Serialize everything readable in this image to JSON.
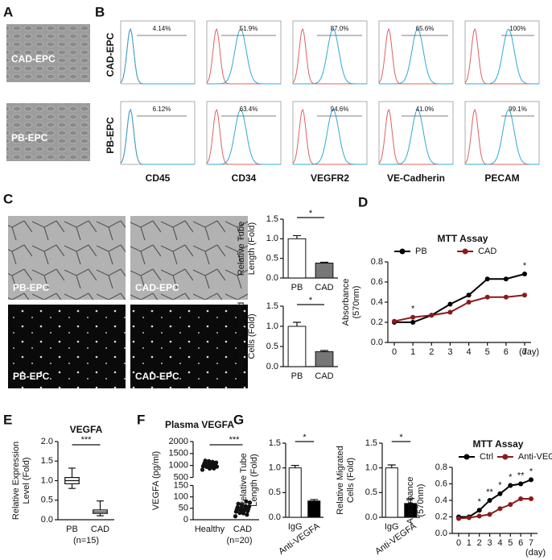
{
  "panel_labels": [
    "A",
    "B",
    "C",
    "D",
    "E",
    "F",
    "G"
  ],
  "panel_A": {
    "images": [
      "CAD-EPC",
      "PB-EPC"
    ]
  },
  "panel_B": {
    "rows": [
      "CAD-EPC",
      "PB-EPC"
    ],
    "markers": [
      "CD45",
      "CD34",
      "VEGFR2",
      "VE-Cadherin",
      "PECAM"
    ],
    "percentages": [
      [
        "4.14%",
        "51.9%",
        "87.0%",
        "65.6%",
        "100%"
      ],
      [
        "6.12%",
        "63.4%",
        "94.6%",
        "41.0%",
        "99.1%"
      ]
    ]
  },
  "panel_C": {
    "images": [
      "PB-EPC",
      "CAD-EPC",
      "PB-EPC",
      "CAD-EPC"
    ]
  },
  "chart_data": [
    {
      "type": "bar",
      "ylabel": [
        "Relative Tube",
        "Length (Fold)"
      ],
      "categories": [
        "PB",
        "CAD"
      ],
      "values": [
        1.0,
        0.38
      ],
      "errors": [
        0.08,
        0.02
      ],
      "colors": [
        "#ffffff",
        "#777777"
      ],
      "ylim": [
        0,
        1.5
      ],
      "yticks": [
        {
          "value": 0,
          "label": "0.0"
        },
        0.5,
        {
          "value": 1,
          "label": "1.0"
        },
        1.5
      ],
      "annotation": "*"
    },
    {
      "type": "bar",
      "ylabel": [
        "Relative Migrated",
        "Cells (Fold)"
      ],
      "categories": [
        "PB",
        "CAD"
      ],
      "values": [
        1.0,
        0.37
      ],
      "errors": [
        0.1,
        0.03
      ],
      "colors": [
        "#ffffff",
        "#777777"
      ],
      "ylim": [
        0,
        1.5
      ],
      "yticks": [
        {
          "value": 0,
          "label": "0.0"
        },
        0.5,
        {
          "value": 1,
          "label": "1.0"
        },
        1.5
      ],
      "annotation": "*"
    },
    {
      "type": "line",
      "title": "MTT Assay",
      "ylabel": [
        "Absorbance",
        "(570nm)"
      ],
      "xlabel": "(day)",
      "x": [
        0,
        1,
        2,
        3,
        4,
        5,
        6,
        7
      ],
      "xlim": [
        0,
        7
      ],
      "xticks": [
        0,
        1,
        2,
        3,
        4,
        5,
        6,
        7
      ],
      "series": [
        {
          "name": "PB",
          "color": "#000000",
          "values": [
            0.2,
            0.2,
            0.27,
            0.38,
            0.47,
            0.63,
            0.63,
            0.68
          ]
        },
        {
          "name": "CAD",
          "color": "#8b1a1a",
          "values": [
            0.21,
            0.25,
            0.27,
            0.3,
            0.4,
            0.45,
            0.45,
            0.47
          ]
        }
      ],
      "ylim": [
        0,
        0.8
      ],
      "yticks": [
        {
          "value": 0,
          "label": "0.0"
        },
        0.2,
        0.4,
        0.6,
        0.8
      ],
      "annotations": [
        {
          "x": 1,
          "text": "*"
        },
        {
          "x": 7,
          "text": "*"
        }
      ]
    },
    {
      "type": "box",
      "title": "VEGFA",
      "ylabel": [
        "Relative Expression",
        "Level (Fold)"
      ],
      "xlabel": "(n=15)",
      "categories": [
        "PB",
        "CAD"
      ],
      "boxes": [
        {
          "min": 0.8,
          "q1": 0.92,
          "median": 1.0,
          "q3": 1.08,
          "max": 1.32
        },
        {
          "min": 0.1,
          "q1": 0.16,
          "median": 0.2,
          "q3": 0.25,
          "max": 0.48
        }
      ],
      "ylim": [
        0,
        2
      ],
      "yticks": [
        {
          "value": 0,
          "label": "0.0"
        },
        0.5,
        {
          "value": 1,
          "label": "1.0"
        },
        1.5,
        {
          "value": 2,
          "label": "2.0"
        }
      ],
      "annotation": "***"
    },
    {
      "type": "scatter",
      "title": "Plasma VEGFA",
      "ylabel": "VEGFA (pg/ml)",
      "xlabel": "(n=20)",
      "categories": [
        "Healthy",
        "CAD"
      ],
      "values": [
        [
          820,
          880,
          900,
          940,
          960,
          980,
          1000,
          1010,
          1030,
          1050,
          1060,
          1080,
          1100,
          1120,
          1150,
          1180,
          1200,
          950,
          1020,
          870
        ],
        [
          15,
          22,
          28,
          30,
          35,
          38,
          40,
          42,
          45,
          48,
          50,
          52,
          55,
          58,
          60,
          65,
          70,
          75,
          80,
          33
        ]
      ],
      "ylim": [
        0,
        150
      ],
      "yticks": [
        0,
        50,
        100,
        150
      ],
      "ylim_upper": [
        500,
        2000
      ],
      "yticks_upper": [
        500,
        1000,
        1500,
        2000
      ],
      "annotation": "***"
    },
    {
      "type": "bar",
      "ylabel": [
        "Relative Tube",
        "Length (Fold)"
      ],
      "categories": [
        "IgG",
        "Anti-VEGFA"
      ],
      "values": [
        1.0,
        0.33
      ],
      "errors": [
        0.05,
        0.03
      ],
      "colors": [
        "#ffffff",
        "#000000"
      ],
      "ylim": [
        0,
        1.5
      ],
      "yticks": [
        {
          "value": 0,
          "label": "0.0"
        },
        0.5,
        {
          "value": 1,
          "label": "1.0"
        },
        1.5
      ],
      "annotation": "*"
    },
    {
      "type": "bar",
      "ylabel": [
        "Relative Migrated",
        "Cells (Fold)"
      ],
      "categories": [
        "IgG",
        "Anti-VEGFA"
      ],
      "values": [
        1.0,
        0.28
      ],
      "errors": [
        0.06,
        0.1
      ],
      "colors": [
        "#ffffff",
        "#000000"
      ],
      "ylim": [
        0,
        1.5
      ],
      "yticks": [
        {
          "value": 0,
          "label": "0.0"
        },
        0.5,
        {
          "value": 1,
          "label": "1.0"
        },
        1.5
      ],
      "annotation": "*"
    },
    {
      "type": "line",
      "title": "MTT Assay",
      "ylabel": [
        "Absorbance",
        "(570nm)"
      ],
      "xlabel": "(day)",
      "x": [
        0,
        1,
        2,
        3,
        4,
        5,
        6,
        7
      ],
      "xlim": [
        0,
        7
      ],
      "xticks": [
        0,
        1,
        2,
        3,
        4,
        5,
        6,
        7
      ],
      "series": [
        {
          "name": "Ctrl",
          "color": "#000000",
          "values": [
            0.2,
            0.2,
            0.28,
            0.4,
            0.48,
            0.58,
            0.6,
            0.65
          ]
        },
        {
          "name": "Anti-VEGFA",
          "color": "#8b1a1a",
          "values": [
            0.18,
            0.19,
            0.21,
            0.23,
            0.3,
            0.35,
            0.42,
            0.42
          ]
        }
      ],
      "ylim": [
        0,
        0.8
      ],
      "yticks": [
        {
          "value": 0,
          "label": "0.0"
        },
        0.2,
        0.4,
        0.6,
        0.8
      ],
      "annotations": [
        {
          "x": 2,
          "text": "*"
        },
        {
          "x": 3,
          "text": "**"
        },
        {
          "x": 4,
          "text": "*"
        },
        {
          "x": 5,
          "text": "*"
        },
        {
          "x": 6,
          "text": "**"
        },
        {
          "x": 7,
          "text": "*"
        }
      ]
    }
  ]
}
